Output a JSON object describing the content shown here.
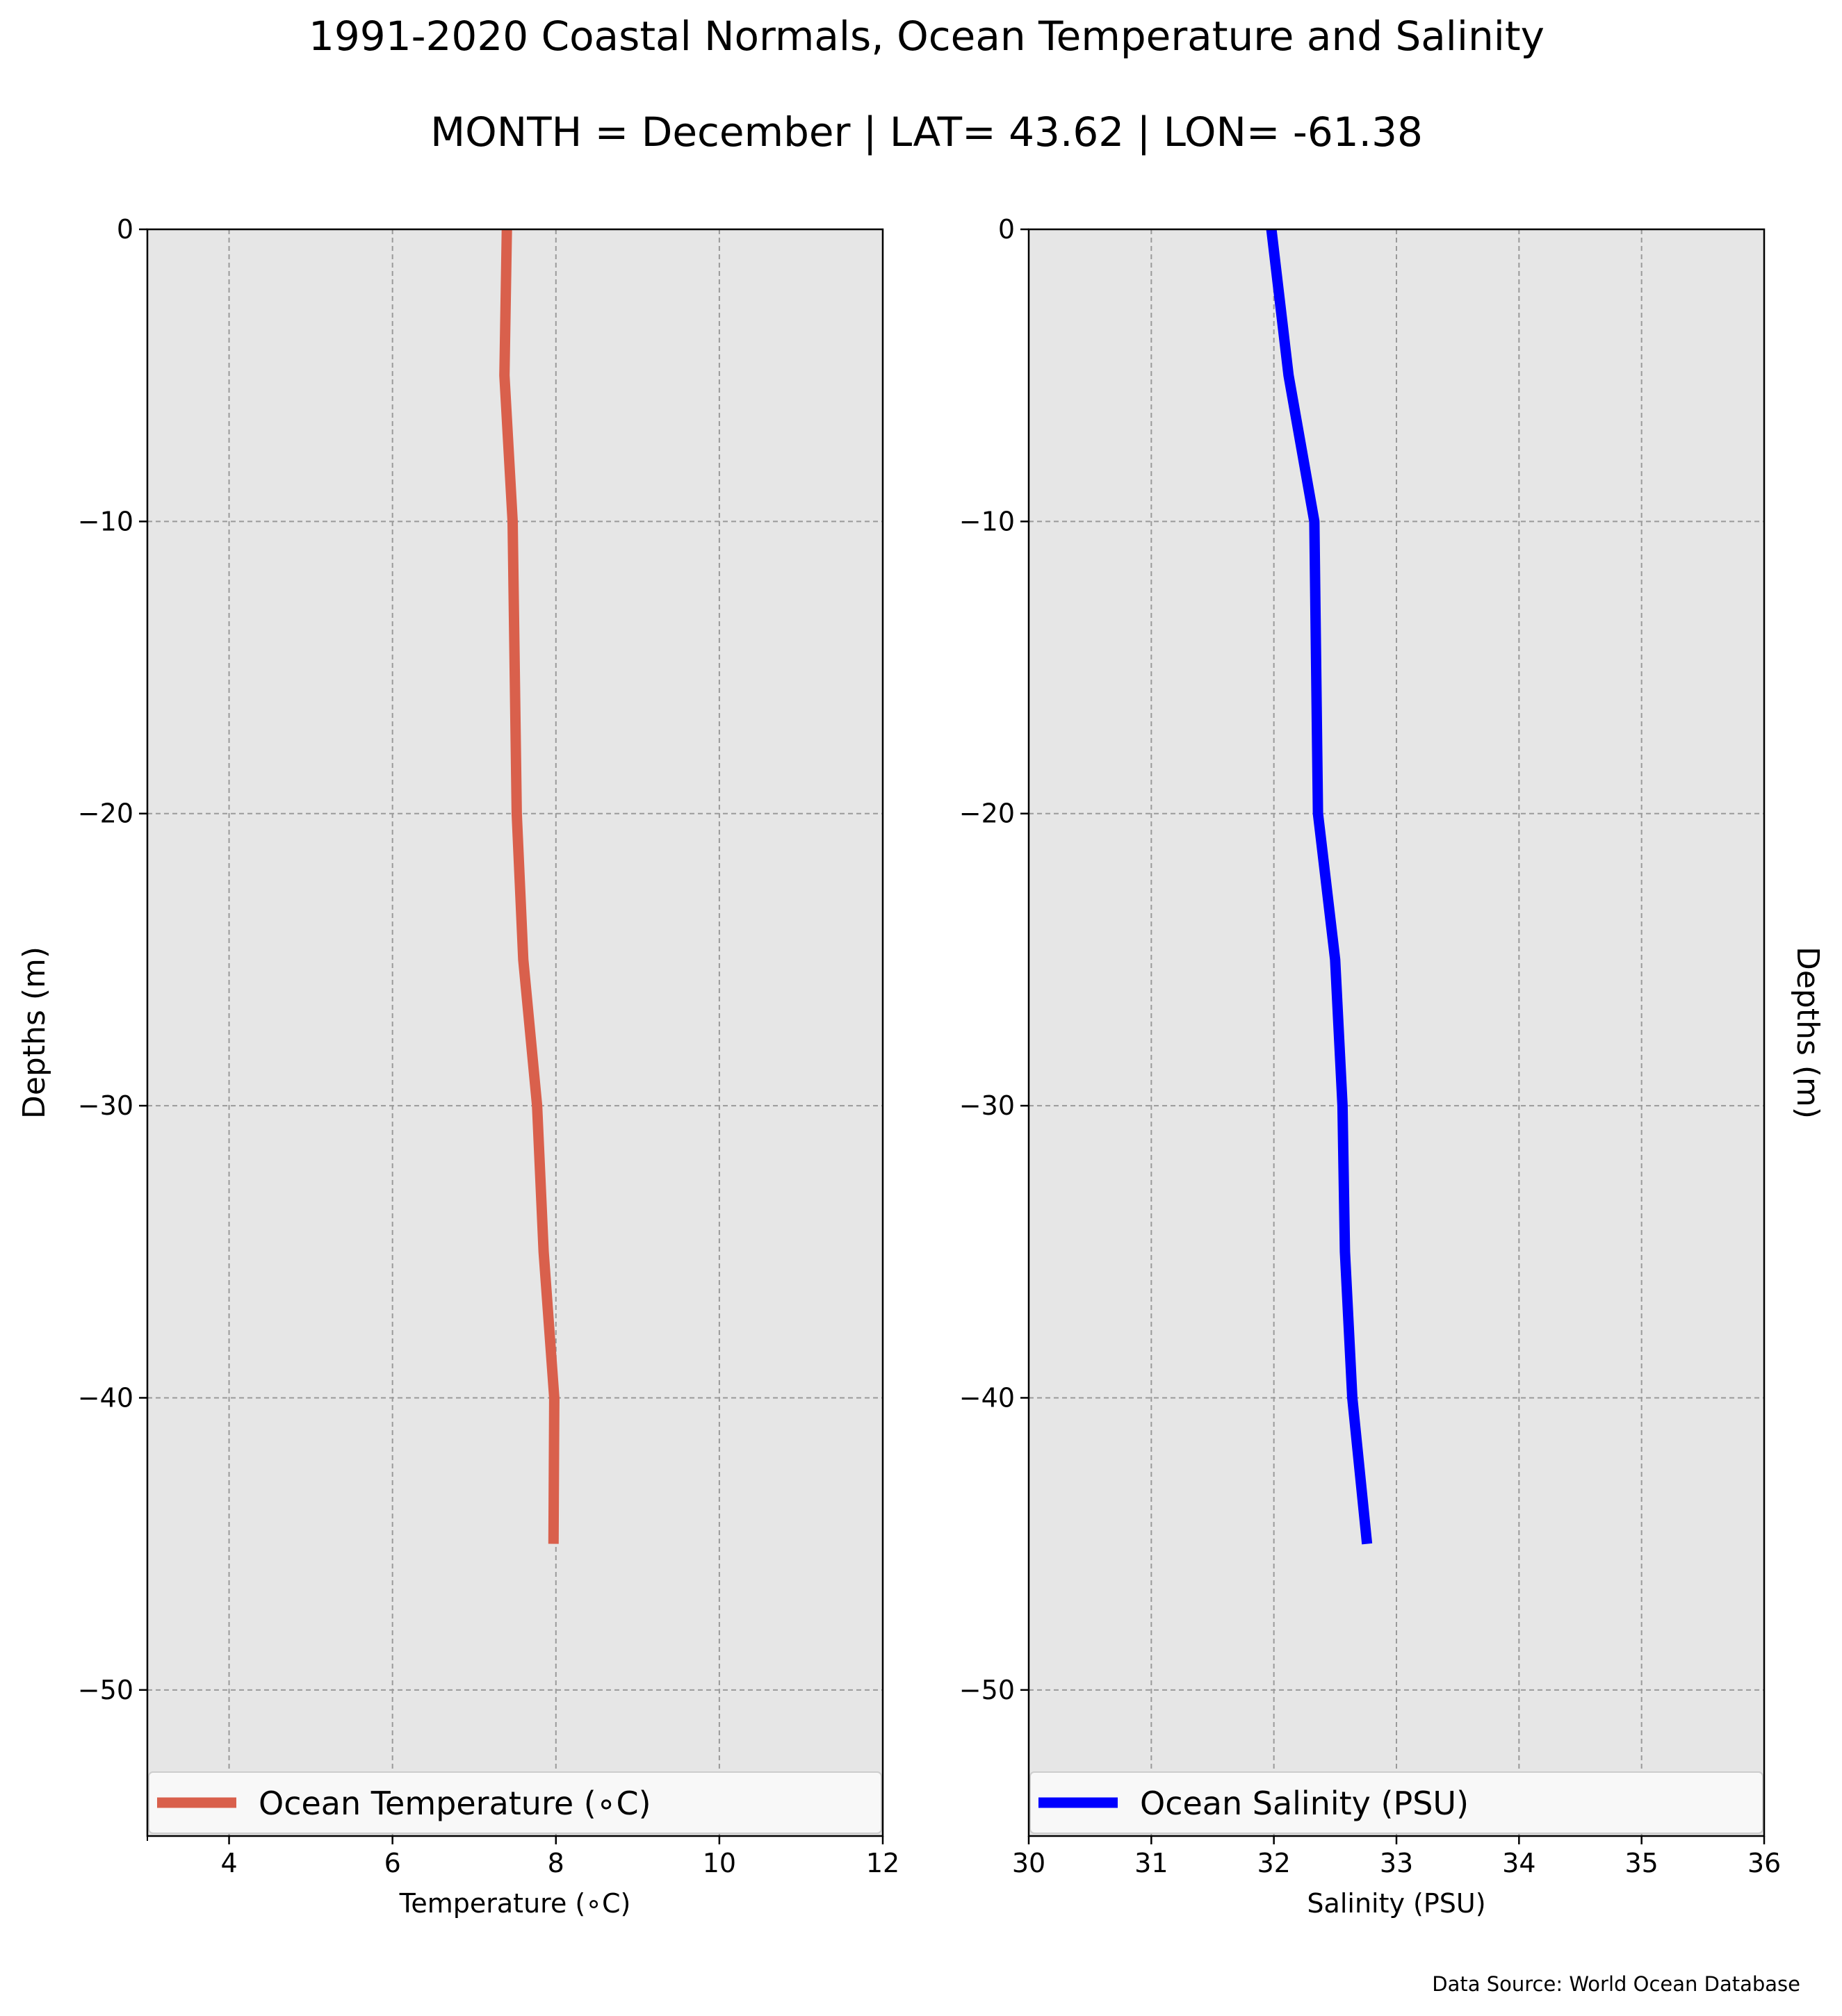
{
  "figure": {
    "title": "1991-2020 Coastal Normals, Ocean Temperature and Salinity",
    "subtitle": "MONTH = December | LAT= 43.62 | LON= -61.38",
    "source": "Data Source: World Ocean Database"
  },
  "chart_data": [
    {
      "type": "line",
      "xlabel": "Temperature (∘C)",
      "ylabel": "Depths (m)",
      "xlim": [
        3,
        12
      ],
      "ylim": [
        -55,
        0
      ],
      "xticks": [
        4,
        6,
        8,
        10,
        12
      ],
      "yticks": [
        0,
        -10,
        -20,
        -30,
        -40,
        -50
      ],
      "grid": true,
      "legend_position": "bottom",
      "series": [
        {
          "name": "Ocean Temperature (∘C)",
          "color": "#d9604c",
          "x": [
            7.4,
            7.37,
            7.47,
            7.52,
            7.6,
            7.77,
            7.85,
            7.98,
            7.97
          ],
          "y": [
            0,
            -5,
            -10,
            -20,
            -25,
            -30,
            -35,
            -40,
            -45
          ]
        }
      ]
    },
    {
      "type": "line",
      "xlabel": "Salinity (PSU)",
      "ylabel": "Depths (m)",
      "ylabel_side": "right",
      "xlim": [
        30,
        36
      ],
      "ylim": [
        -55,
        0
      ],
      "xticks": [
        30,
        31,
        32,
        33,
        34,
        35,
        36
      ],
      "yticks": [
        0,
        -10,
        -20,
        -30,
        -40,
        -50
      ],
      "grid": true,
      "legend_position": "bottom",
      "series": [
        {
          "name": "Ocean Salinity (PSU)",
          "color": "#0000ff",
          "x": [
            31.98,
            32.12,
            32.33,
            32.36,
            32.5,
            32.56,
            32.58,
            32.64,
            32.76
          ],
          "y": [
            0,
            -5,
            -10,
            -20,
            -25,
            -30,
            -35,
            -40,
            -45
          ]
        }
      ]
    }
  ]
}
